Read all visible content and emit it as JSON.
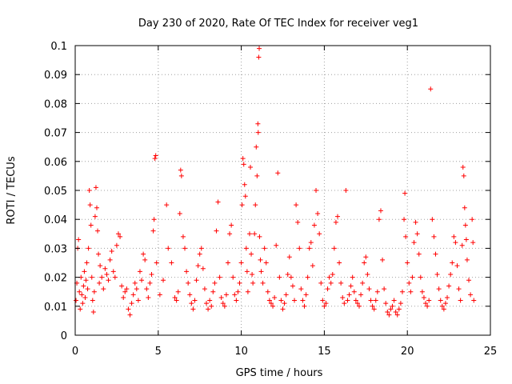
{
  "chart_data": {
    "type": "scatter",
    "title": "Day 230 of 2020, Rate Of TEC Index for receiver veg1",
    "xlabel": "GPS time / hours",
    "ylabel": "ROTI / TECUs",
    "xlim": [
      0,
      25
    ],
    "ylim": [
      0,
      0.1
    ],
    "xticks": [
      "0",
      "5",
      "10",
      "15",
      "20",
      "25"
    ],
    "yticks": [
      "0",
      "0.01",
      "0.02",
      "0.03",
      "0.04",
      "0.05",
      "0.06",
      "0.07",
      "0.08",
      "0.09",
      "0.1"
    ],
    "grid": true,
    "marker": "+",
    "series_color": "#ff0000",
    "points": [
      [
        0.05,
        0.012
      ],
      [
        0.1,
        0.018
      ],
      [
        0.15,
        0.03
      ],
      [
        0.2,
        0.033
      ],
      [
        0.25,
        0.015
      ],
      [
        0.3,
        0.009
      ],
      [
        0.35,
        0.02
      ],
      [
        0.4,
        0.014
      ],
      [
        0.45,
        0.011
      ],
      [
        0.5,
        0.017
      ],
      [
        0.55,
        0.022
      ],
      [
        0.6,
        0.013
      ],
      [
        0.65,
        0.019
      ],
      [
        0.7,
        0.025
      ],
      [
        0.75,
        0.016
      ],
      [
        0.8,
        0.03
      ],
      [
        0.85,
        0.05
      ],
      [
        0.9,
        0.045
      ],
      [
        0.95,
        0.038
      ],
      [
        1.0,
        0.02
      ],
      [
        1.05,
        0.012
      ],
      [
        1.1,
        0.008
      ],
      [
        1.15,
        0.015
      ],
      [
        1.2,
        0.041
      ],
      [
        1.25,
        0.051
      ],
      [
        1.3,
        0.044
      ],
      [
        1.35,
        0.036
      ],
      [
        1.4,
        0.028
      ],
      [
        1.45,
        0.018
      ],
      [
        1.5,
        0.024
      ],
      [
        1.6,
        0.02
      ],
      [
        1.7,
        0.016
      ],
      [
        1.8,
        0.023
      ],
      [
        1.9,
        0.021
      ],
      [
        2.0,
        0.019
      ],
      [
        2.1,
        0.026
      ],
      [
        2.2,
        0.029
      ],
      [
        2.3,
        0.022
      ],
      [
        2.4,
        0.02
      ],
      [
        2.5,
        0.031
      ],
      [
        2.6,
        0.035
      ],
      [
        2.7,
        0.034
      ],
      [
        2.8,
        0.017
      ],
      [
        2.9,
        0.013
      ],
      [
        3.0,
        0.015
      ],
      [
        3.1,
        0.016
      ],
      [
        3.2,
        0.009
      ],
      [
        3.3,
        0.007
      ],
      [
        3.4,
        0.011
      ],
      [
        3.5,
        0.014
      ],
      [
        3.6,
        0.018
      ],
      [
        3.7,
        0.016
      ],
      [
        3.8,
        0.012
      ],
      [
        3.9,
        0.022
      ],
      [
        4.0,
        0.019
      ],
      [
        4.1,
        0.028
      ],
      [
        4.2,
        0.026
      ],
      [
        4.3,
        0.016
      ],
      [
        4.4,
        0.013
      ],
      [
        4.5,
        0.018
      ],
      [
        4.6,
        0.021
      ],
      [
        4.7,
        0.036
      ],
      [
        4.75,
        0.04
      ],
      [
        4.8,
        0.061
      ],
      [
        4.85,
        0.062
      ],
      [
        4.9,
        0.025
      ],
      [
        5.1,
        0.014
      ],
      [
        5.3,
        0.019
      ],
      [
        5.5,
        0.045
      ],
      [
        5.6,
        0.03
      ],
      [
        5.8,
        0.025
      ],
      [
        6.0,
        0.013
      ],
      [
        6.1,
        0.012
      ],
      [
        6.2,
        0.015
      ],
      [
        6.3,
        0.042
      ],
      [
        6.35,
        0.057
      ],
      [
        6.4,
        0.055
      ],
      [
        6.5,
        0.034
      ],
      [
        6.6,
        0.03
      ],
      [
        6.7,
        0.022
      ],
      [
        6.8,
        0.018
      ],
      [
        6.9,
        0.014
      ],
      [
        7.0,
        0.011
      ],
      [
        7.1,
        0.009
      ],
      [
        7.2,
        0.012
      ],
      [
        7.3,
        0.019
      ],
      [
        7.4,
        0.024
      ],
      [
        7.5,
        0.028
      ],
      [
        7.6,
        0.03
      ],
      [
        7.7,
        0.023
      ],
      [
        7.8,
        0.016
      ],
      [
        7.9,
        0.011
      ],
      [
        8.0,
        0.009
      ],
      [
        8.1,
        0.012
      ],
      [
        8.2,
        0.01
      ],
      [
        8.3,
        0.015
      ],
      [
        8.4,
        0.018
      ],
      [
        8.5,
        0.036
      ],
      [
        8.6,
        0.046
      ],
      [
        8.7,
        0.02
      ],
      [
        8.8,
        0.013
      ],
      [
        8.9,
        0.011
      ],
      [
        9.0,
        0.01
      ],
      [
        9.1,
        0.014
      ],
      [
        9.2,
        0.025
      ],
      [
        9.3,
        0.035
      ],
      [
        9.4,
        0.038
      ],
      [
        9.5,
        0.02
      ],
      [
        9.6,
        0.014
      ],
      [
        9.7,
        0.012
      ],
      [
        9.8,
        0.015
      ],
      [
        9.9,
        0.018
      ],
      [
        10.0,
        0.025
      ],
      [
        10.05,
        0.045
      ],
      [
        10.1,
        0.061
      ],
      [
        10.15,
        0.059
      ],
      [
        10.2,
        0.052
      ],
      [
        10.25,
        0.048
      ],
      [
        10.3,
        0.03
      ],
      [
        10.35,
        0.022
      ],
      [
        10.4,
        0.015
      ],
      [
        10.5,
        0.035
      ],
      [
        10.55,
        0.058
      ],
      [
        10.6,
        0.028
      ],
      [
        10.65,
        0.021
      ],
      [
        10.7,
        0.018
      ],
      [
        10.8,
        0.035
      ],
      [
        10.85,
        0.045
      ],
      [
        10.9,
        0.065
      ],
      [
        10.95,
        0.055
      ],
      [
        11.0,
        0.073
      ],
      [
        11.02,
        0.07
      ],
      [
        11.05,
        0.096
      ],
      [
        11.08,
        0.099
      ],
      [
        11.1,
        0.034
      ],
      [
        11.15,
        0.026
      ],
      [
        11.2,
        0.022
      ],
      [
        11.3,
        0.018
      ],
      [
        11.4,
        0.03
      ],
      [
        11.5,
        0.025
      ],
      [
        11.6,
        0.015
      ],
      [
        11.7,
        0.012
      ],
      [
        11.8,
        0.011
      ],
      [
        11.9,
        0.01
      ],
      [
        12.0,
        0.013
      ],
      [
        12.1,
        0.031
      ],
      [
        12.2,
        0.056
      ],
      [
        12.3,
        0.02
      ],
      [
        12.4,
        0.012
      ],
      [
        12.5,
        0.009
      ],
      [
        12.6,
        0.011
      ],
      [
        12.7,
        0.014
      ],
      [
        12.8,
        0.021
      ],
      [
        12.9,
        0.027
      ],
      [
        13.0,
        0.02
      ],
      [
        13.1,
        0.017
      ],
      [
        13.2,
        0.012
      ],
      [
        13.3,
        0.045
      ],
      [
        13.4,
        0.039
      ],
      [
        13.5,
        0.03
      ],
      [
        13.6,
        0.016
      ],
      [
        13.7,
        0.012
      ],
      [
        13.8,
        0.01
      ],
      [
        13.9,
        0.014
      ],
      [
        14.0,
        0.02
      ],
      [
        14.1,
        0.03
      ],
      [
        14.2,
        0.032
      ],
      [
        14.3,
        0.024
      ],
      [
        14.4,
        0.038
      ],
      [
        14.5,
        0.05
      ],
      [
        14.6,
        0.042
      ],
      [
        14.7,
        0.035
      ],
      [
        14.8,
        0.018
      ],
      [
        14.9,
        0.012
      ],
      [
        15.0,
        0.01
      ],
      [
        15.1,
        0.011
      ],
      [
        15.2,
        0.016
      ],
      [
        15.3,
        0.02
      ],
      [
        15.4,
        0.018
      ],
      [
        15.5,
        0.021
      ],
      [
        15.6,
        0.03
      ],
      [
        15.7,
        0.039
      ],
      [
        15.8,
        0.041
      ],
      [
        15.9,
        0.025
      ],
      [
        16.0,
        0.018
      ],
      [
        16.1,
        0.013
      ],
      [
        16.2,
        0.011
      ],
      [
        16.3,
        0.05
      ],
      [
        16.4,
        0.012
      ],
      [
        16.5,
        0.014
      ],
      [
        16.6,
        0.017
      ],
      [
        16.7,
        0.02
      ],
      [
        16.8,
        0.015
      ],
      [
        16.9,
        0.012
      ],
      [
        17.0,
        0.011
      ],
      [
        17.1,
        0.01
      ],
      [
        17.2,
        0.014
      ],
      [
        17.3,
        0.018
      ],
      [
        17.4,
        0.025
      ],
      [
        17.5,
        0.027
      ],
      [
        17.6,
        0.021
      ],
      [
        17.7,
        0.016
      ],
      [
        17.8,
        0.012
      ],
      [
        17.9,
        0.01
      ],
      [
        18.0,
        0.009
      ],
      [
        18.1,
        0.012
      ],
      [
        18.2,
        0.015
      ],
      [
        18.3,
        0.04
      ],
      [
        18.4,
        0.043
      ],
      [
        18.5,
        0.026
      ],
      [
        18.6,
        0.016
      ],
      [
        18.7,
        0.011
      ],
      [
        18.8,
        0.008
      ],
      [
        18.9,
        0.007
      ],
      [
        19.0,
        0.009
      ],
      [
        19.1,
        0.01
      ],
      [
        19.2,
        0.012
      ],
      [
        19.3,
        0.008
      ],
      [
        19.4,
        0.007
      ],
      [
        19.5,
        0.009
      ],
      [
        19.6,
        0.011
      ],
      [
        19.7,
        0.015
      ],
      [
        19.8,
        0.04
      ],
      [
        19.85,
        0.049
      ],
      [
        19.9,
        0.034
      ],
      [
        20.0,
        0.025
      ],
      [
        20.1,
        0.018
      ],
      [
        20.2,
        0.015
      ],
      [
        20.3,
        0.02
      ],
      [
        20.4,
        0.032
      ],
      [
        20.5,
        0.039
      ],
      [
        20.6,
        0.035
      ],
      [
        20.7,
        0.028
      ],
      [
        20.8,
        0.02
      ],
      [
        20.9,
        0.015
      ],
      [
        21.0,
        0.013
      ],
      [
        21.1,
        0.011
      ],
      [
        21.2,
        0.01
      ],
      [
        21.3,
        0.012
      ],
      [
        21.4,
        0.085
      ],
      [
        21.5,
        0.04
      ],
      [
        21.6,
        0.034
      ],
      [
        21.7,
        0.028
      ],
      [
        21.8,
        0.021
      ],
      [
        21.9,
        0.016
      ],
      [
        22.0,
        0.012
      ],
      [
        22.1,
        0.01
      ],
      [
        22.2,
        0.009
      ],
      [
        22.3,
        0.011
      ],
      [
        22.4,
        0.013
      ],
      [
        22.5,
        0.017
      ],
      [
        22.6,
        0.021
      ],
      [
        22.7,
        0.025
      ],
      [
        22.8,
        0.034
      ],
      [
        22.9,
        0.032
      ],
      [
        23.0,
        0.024
      ],
      [
        23.1,
        0.016
      ],
      [
        23.2,
        0.012
      ],
      [
        23.3,
        0.031
      ],
      [
        23.35,
        0.058
      ],
      [
        23.4,
        0.055
      ],
      [
        23.45,
        0.044
      ],
      [
        23.5,
        0.038
      ],
      [
        23.55,
        0.033
      ],
      [
        23.6,
        0.026
      ],
      [
        23.7,
        0.019
      ],
      [
        23.8,
        0.014
      ],
      [
        23.9,
        0.04
      ],
      [
        23.95,
        0.032
      ],
      [
        24.0,
        0.012
      ]
    ]
  }
}
